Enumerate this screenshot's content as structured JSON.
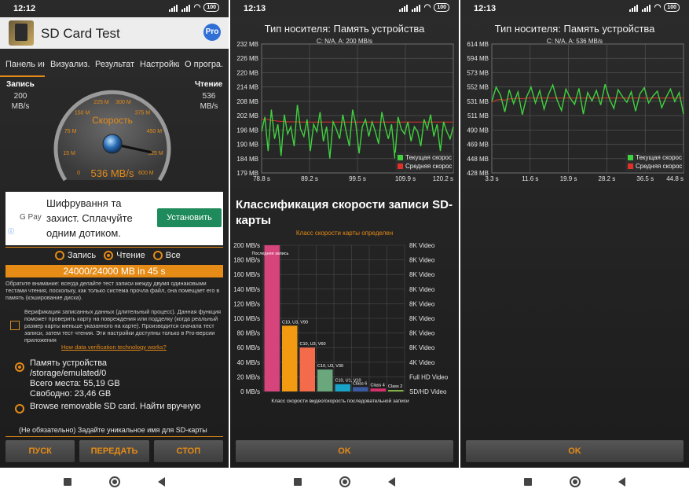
{
  "status": {
    "panel1_time": "12:12",
    "panel2_time": "12:13",
    "panel3_time": "12:13",
    "battery": "100"
  },
  "app": {
    "title": "SD Card Test",
    "pro_badge": "Pro",
    "tabs": [
      "Панель ин",
      "Визуализ..",
      "Результат..",
      "Настройки",
      "О програ.."
    ]
  },
  "gauge": {
    "write_label": "Запись",
    "write_value": "200",
    "write_unit": "MB/s",
    "read_label": "Чтение",
    "read_value": "536",
    "read_unit": "MB/s",
    "center_label": "Скорость",
    "readout": "536 MB/s",
    "scale_labels": [
      "0",
      "15 M",
      "75 M",
      "150 M",
      "225 M",
      "300 M",
      "375 M",
      "450 M",
      "525 M",
      "600 M"
    ],
    "needle_value": 536,
    "max": 600,
    "accent_color": "#e58b16"
  },
  "ad": {
    "brand": "G Pay",
    "text": "Шифрування та захист. Сплачуйте одним дотиком.",
    "button": "Установить",
    "info": "ⓘ"
  },
  "mode": {
    "options": [
      "Запись",
      "Чтение",
      "Все"
    ],
    "selected": "Чтение"
  },
  "progress": {
    "text": "24000/24000 MB in 45 s",
    "fraction": 1.0
  },
  "note": "Обратите внимание: всегда делайте тест записи между двумя одинаковыми тестами чтения, поскольку, как только система прочла файл, она помещает его в память (кэширование диска).",
  "verification": {
    "text": "Верификация записанных данных (длительный процесс). Данная функция поможет проверить карту на повреждения или подделку (когда реальный размер карты меньше указанного на карте). Производится сначала тест записи, затем тест чтения. Эти настройки доступны только в Pro-версии приложения",
    "link": "How data verification technology works?",
    "checked": false
  },
  "storage": {
    "device_label": "Память устройства",
    "path": "/storage/emulated/0",
    "total": "Всего места: 55,19 GB",
    "free": "Свободно: 23,46 GB",
    "browse": "Browse removable SD card. Найти вручную"
  },
  "optional_name": "(Не обязательно) Задайте уникальное имя для SD-карты",
  "actions": {
    "start": "ПУСК",
    "send": "ПЕРЕДАТЬ",
    "stop": "СТОП",
    "ok": "OK"
  },
  "write_panel": {
    "title": "Тип носителя: Память устройства",
    "subtitle": "C: N/A, A: 200 MB/s",
    "legend_current": "Текущая скорос",
    "legend_avg": "Средняя скорос",
    "class_title": "Классификация скорости записи SD-карты",
    "class_subtitle": "Класс скорости карты определен"
  },
  "read_panel": {
    "title": "Тип носителя: Память устройства",
    "subtitle": "C: N/A, A: 536 MB/s",
    "legend_current": "Текущая скорос",
    "legend_avg": "Средняя скорос"
  },
  "chart_data": [
    {
      "type": "line",
      "title": "Тип носителя: Память устройства",
      "subtitle": "C: N/A, A: 200 MB/s",
      "y_ticks": [
        "232 MB",
        "226 MB",
        "220 MB",
        "214 MB",
        "208 MB",
        "202 MB",
        "196 MB",
        "190 MB",
        "184 MB",
        "179 MB"
      ],
      "x_ticks": [
        "78.8 s",
        "89.2 s",
        "99.5 s",
        "109.9 s",
        "120.2 s"
      ],
      "ylim": [
        179,
        232
      ],
      "xlim": [
        78.8,
        120.2
      ],
      "legend": "bottom-right",
      "series": [
        {
          "name": "Текущая скорос",
          "color": "#3fd13f",
          "values": [
            196,
            202,
            188,
            205,
            193,
            199,
            186,
            203,
            195,
            198,
            190,
            207,
            197,
            194,
            201,
            188,
            199,
            196,
            204,
            192,
            198,
            185,
            200,
            197,
            193,
            203,
            196,
            190,
            205,
            199,
            187,
            198,
            201,
            194,
            200,
            196,
            191,
            204,
            198,
            193,
            199,
            185,
            202,
            197,
            195,
            200,
            192,
            198,
            196,
            190,
            201,
            197,
            203,
            194,
            199,
            188,
            200,
            196,
            193,
            198
          ]
        },
        {
          "name": "Средняя скорос",
          "color": "#e0302a",
          "values": [
            201,
            201,
            201,
            200.5,
            200.5,
            200.3,
            200.2,
            200.1,
            200,
            200,
            200,
            200,
            199.9,
            199.9,
            199.9,
            199.9,
            199.9,
            199.9,
            199.9,
            199.9,
            199.9,
            199.9,
            199.9,
            199.9,
            199.9,
            199.9,
            199.9,
            199.9,
            199.9,
            199.9,
            199.9,
            199.9,
            199.9,
            199.9,
            199.9,
            199.9,
            199.9,
            199.9,
            199.9,
            199.9,
            199.9,
            199.9,
            199.9,
            199.9,
            199.9,
            199.9,
            199.9,
            199.9,
            199.9,
            199.9,
            199.9,
            199.9,
            199.9,
            199.9,
            199.9,
            199.9,
            199.9,
            199.9,
            199.9,
            199.9
          ]
        }
      ]
    },
    {
      "type": "bar",
      "title": "Классификация скорости записи SD-карты",
      "subtitle": "Класс скорости карты определен",
      "xlabel": "Класс скорости видео/скорость последовательной записи",
      "y_ticks": [
        "200 MB/s",
        "180 MB/s",
        "160 MB/s",
        "140 MB/s",
        "120 MB/s",
        "100 MB/s",
        "80 MB/s",
        "60 MB/s",
        "40 MB/s",
        "20 MB/s",
        "0 MB/s"
      ],
      "right_ticks": [
        "8K Video",
        "8K Video",
        "8K Video",
        "8K Video",
        "8K Video",
        "8K Video",
        "8K Video",
        "8K Video",
        "4K Video",
        "Full HD Video",
        "SD/HD Video"
      ],
      "ylim": [
        0,
        200
      ],
      "categories": [
        "Последняя запись",
        "C10, U3, V90",
        "C10, U3, V60",
        "C10, U3, V30",
        "C10, U1, V10",
        "Class 6",
        "Class 4",
        "Class 2"
      ],
      "values": [
        200,
        90,
        60,
        30,
        10,
        6,
        4,
        2
      ],
      "colors": [
        "#d6447c",
        "#f29a12",
        "#f36b4a",
        "#6aa77d",
        "#1aa3c8",
        "#3a5aa3",
        "#d8306a",
        "#8bc34a"
      ]
    },
    {
      "type": "line",
      "title": "Тип носителя: Память устройства",
      "subtitle": "C: N/A, A: 536 MB/s",
      "y_ticks": [
        "614 MB",
        "594 MB",
        "573 MB",
        "552 MB",
        "531 MB",
        "511 MB",
        "490 MB",
        "469 MB",
        "448 MB",
        "428 MB"
      ],
      "x_ticks": [
        "3.3 s",
        "11.6 s",
        "19.9 s",
        "28.2 s",
        "36.5 s",
        "44.8 s"
      ],
      "ylim": [
        428,
        614
      ],
      "xlim": [
        3.3,
        44.8
      ],
      "legend": "bottom-right",
      "series": [
        {
          "name": "Текущая скорос",
          "color": "#3fd13f",
          "values": [
            531,
            552,
            540,
            516,
            548,
            528,
            545,
            512,
            538,
            552,
            529,
            547,
            520,
            541,
            555,
            533,
            518,
            549,
            536,
            527,
            550,
            513,
            544,
            532,
            547,
            526,
            556,
            535,
            521,
            548,
            538,
            530,
            545,
            517,
            542,
            551,
            529,
            539,
            546,
            522,
            537,
            549,
            531,
            544,
            513
          ]
        },
        {
          "name": "Средняя скорос",
          "color": "#e0302a",
          "values": [
            530,
            533,
            534,
            533,
            535,
            535,
            536,
            535,
            536,
            536,
            536,
            536,
            536,
            536,
            536,
            536,
            536,
            536,
            536,
            536,
            536,
            536,
            536,
            536,
            536,
            536,
            536,
            536,
            536,
            536,
            536,
            536,
            536,
            536,
            536,
            536,
            536,
            536,
            536,
            536,
            536,
            536,
            536,
            536,
            536
          ]
        }
      ]
    }
  ]
}
